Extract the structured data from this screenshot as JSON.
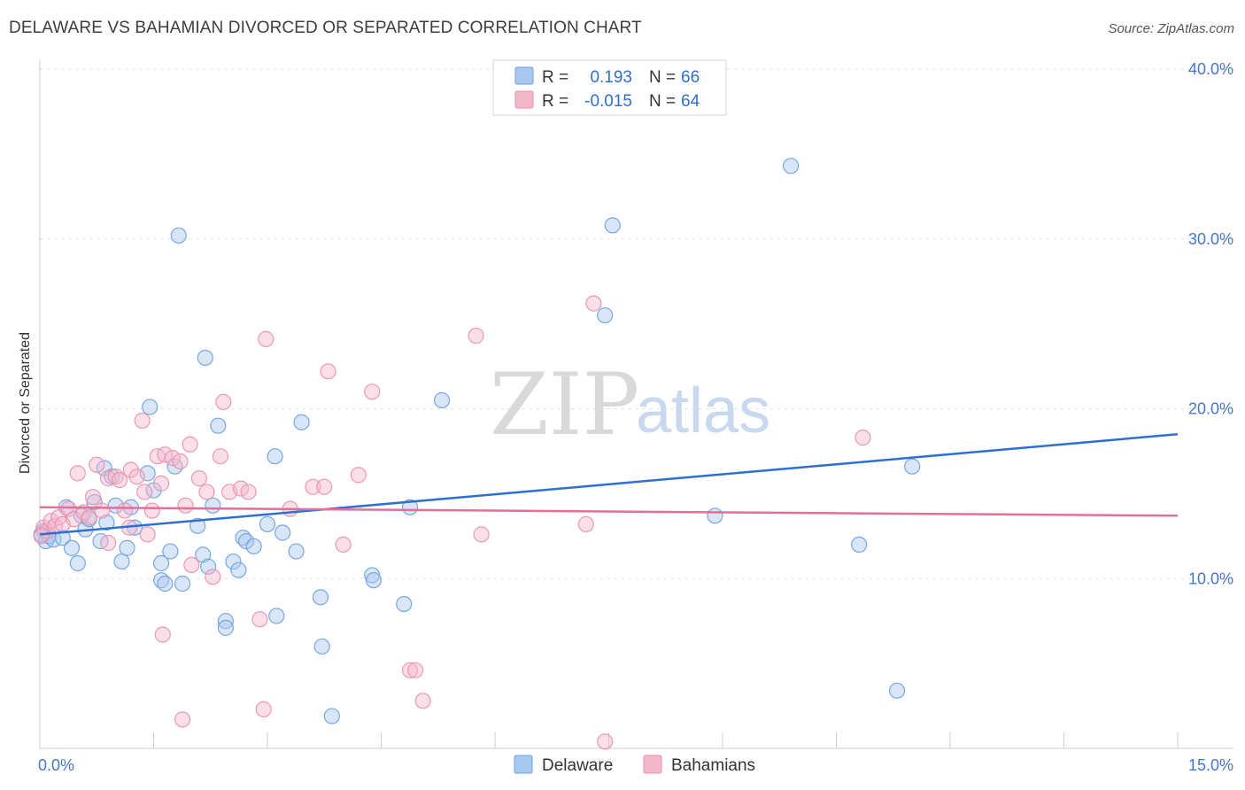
{
  "title": "DELAWARE VS BAHAMIAN DIVORCED OR SEPARATED CORRELATION CHART",
  "source": "Source: ZipAtlas.com",
  "watermark": {
    "zip": "ZIP",
    "atlas": "atlas"
  },
  "legend": {
    "rows": [
      {
        "r_label": "R =",
        "r_value": "0.193",
        "n_label": "N =",
        "n_value": "66",
        "color": "#a9c8f0"
      },
      {
        "r_label": "R =",
        "r_value": "-0.015",
        "n_label": "N =",
        "n_value": "64",
        "color": "#f5b8cb"
      }
    ]
  },
  "chart_data": {
    "type": "scatter",
    "title": "DELAWARE VS BAHAMIAN DIVORCED OR SEPARATED CORRELATION CHART",
    "xlabel": "",
    "ylabel": "Divorced or Separated",
    "xlim": [
      0,
      15
    ],
    "ylim": [
      0,
      40
    ],
    "x_tick_labels": [
      "0.0%",
      "15.0%"
    ],
    "y_ticks": [
      10,
      20,
      30,
      40
    ],
    "y_tick_labels": [
      "10.0%",
      "20.0%",
      "30.0%",
      "40.0%"
    ],
    "grid": true,
    "legend_position": "top-center",
    "series": [
      {
        "name": "Delaware",
        "color": "#6a9fe0",
        "fill": "#a9c8f0",
        "trend": {
          "x": [
            0,
            15
          ],
          "y": [
            12.6,
            18.5
          ],
          "color": "#2f6fd0"
        },
        "points": [
          {
            "x": 0.05,
            "y": 12.8
          },
          {
            "x": 0.08,
            "y": 12.2
          },
          {
            "x": 0.12,
            "y": 12.5
          },
          {
            "x": 0.18,
            "y": 12.3
          },
          {
            "x": 0.3,
            "y": 12.4
          },
          {
            "x": 0.35,
            "y": 14.2
          },
          {
            "x": 0.42,
            "y": 11.8
          },
          {
            "x": 0.5,
            "y": 10.9
          },
          {
            "x": 0.55,
            "y": 13.7
          },
          {
            "x": 0.6,
            "y": 12.9
          },
          {
            "x": 0.65,
            "y": 13.5
          },
          {
            "x": 0.72,
            "y": 14.5
          },
          {
            "x": 0.8,
            "y": 12.2
          },
          {
            "x": 0.85,
            "y": 16.5
          },
          {
            "x": 0.88,
            "y": 13.3
          },
          {
            "x": 0.95,
            "y": 16.0
          },
          {
            "x": 1.0,
            "y": 14.3
          },
          {
            "x": 1.08,
            "y": 11.0
          },
          {
            "x": 1.15,
            "y": 11.8
          },
          {
            "x": 1.2,
            "y": 14.2
          },
          {
            "x": 1.25,
            "y": 13.0
          },
          {
            "x": 1.42,
            "y": 16.2
          },
          {
            "x": 1.45,
            "y": 20.1
          },
          {
            "x": 1.5,
            "y": 15.2
          },
          {
            "x": 1.6,
            "y": 10.9
          },
          {
            "x": 1.6,
            "y": 9.9
          },
          {
            "x": 1.65,
            "y": 9.7
          },
          {
            "x": 1.72,
            "y": 11.6
          },
          {
            "x": 1.78,
            "y": 16.6
          },
          {
            "x": 1.83,
            "y": 30.2
          },
          {
            "x": 1.88,
            "y": 9.7
          },
          {
            "x": 2.08,
            "y": 13.1
          },
          {
            "x": 2.15,
            "y": 11.4
          },
          {
            "x": 2.18,
            "y": 23.0
          },
          {
            "x": 2.22,
            "y": 10.7
          },
          {
            "x": 2.28,
            "y": 14.3
          },
          {
            "x": 2.35,
            "y": 19.0
          },
          {
            "x": 2.45,
            "y": 7.5
          },
          {
            "x": 2.45,
            "y": 7.1
          },
          {
            "x": 2.55,
            "y": 11.0
          },
          {
            "x": 2.62,
            "y": 10.5
          },
          {
            "x": 2.68,
            "y": 12.4
          },
          {
            "x": 2.72,
            "y": 12.2
          },
          {
            "x": 2.82,
            "y": 11.9
          },
          {
            "x": 3.0,
            "y": 13.2
          },
          {
            "x": 3.1,
            "y": 17.2
          },
          {
            "x": 3.12,
            "y": 7.8
          },
          {
            "x": 3.2,
            "y": 12.7
          },
          {
            "x": 3.38,
            "y": 11.6
          },
          {
            "x": 3.45,
            "y": 19.2
          },
          {
            "x": 3.7,
            "y": 8.9
          },
          {
            "x": 3.72,
            "y": 6.0
          },
          {
            "x": 3.85,
            "y": 1.9
          },
          {
            "x": 4.38,
            "y": 10.2
          },
          {
            "x": 4.4,
            "y": 9.9
          },
          {
            "x": 4.8,
            "y": 8.5
          },
          {
            "x": 4.88,
            "y": 14.2
          },
          {
            "x": 5.3,
            "y": 20.5
          },
          {
            "x": 7.45,
            "y": 25.5
          },
          {
            "x": 7.55,
            "y": 30.8
          },
          {
            "x": 8.9,
            "y": 13.7
          },
          {
            "x": 9.9,
            "y": 34.3
          },
          {
            "x": 10.8,
            "y": 12.0
          },
          {
            "x": 11.3,
            "y": 3.4
          },
          {
            "x": 11.5,
            "y": 16.6
          },
          {
            "x": 0.02,
            "y": 12.6
          }
        ]
      },
      {
        "name": "Bahamians",
        "color": "#ea8eab",
        "fill": "#f5b8cb",
        "trend": {
          "x": [
            0,
            15
          ],
          "y": [
            14.2,
            13.7
          ],
          "color": "#e0709a"
        },
        "points": [
          {
            "x": 0.05,
            "y": 13.0
          },
          {
            "x": 0.1,
            "y": 12.8
          },
          {
            "x": 0.15,
            "y": 13.4
          },
          {
            "x": 0.2,
            "y": 13.1
          },
          {
            "x": 0.25,
            "y": 13.6
          },
          {
            "x": 0.3,
            "y": 13.2
          },
          {
            "x": 0.38,
            "y": 14.1
          },
          {
            "x": 0.45,
            "y": 13.5
          },
          {
            "x": 0.5,
            "y": 16.2
          },
          {
            "x": 0.58,
            "y": 13.9
          },
          {
            "x": 0.65,
            "y": 13.6
          },
          {
            "x": 0.7,
            "y": 14.8
          },
          {
            "x": 0.75,
            "y": 16.7
          },
          {
            "x": 0.82,
            "y": 14.0
          },
          {
            "x": 0.9,
            "y": 15.9
          },
          {
            "x": 0.9,
            "y": 12.1
          },
          {
            "x": 1.0,
            "y": 16.0
          },
          {
            "x": 1.05,
            "y": 15.8
          },
          {
            "x": 1.12,
            "y": 14.0
          },
          {
            "x": 1.18,
            "y": 13.0
          },
          {
            "x": 1.2,
            "y": 16.4
          },
          {
            "x": 1.28,
            "y": 16.0
          },
          {
            "x": 1.35,
            "y": 19.3
          },
          {
            "x": 1.38,
            "y": 15.1
          },
          {
            "x": 1.42,
            "y": 12.6
          },
          {
            "x": 1.48,
            "y": 14.0
          },
          {
            "x": 1.55,
            "y": 17.2
          },
          {
            "x": 1.6,
            "y": 15.6
          },
          {
            "x": 1.62,
            "y": 6.7
          },
          {
            "x": 1.65,
            "y": 17.3
          },
          {
            "x": 1.75,
            "y": 17.1
          },
          {
            "x": 1.85,
            "y": 16.9
          },
          {
            "x": 1.88,
            "y": 1.7
          },
          {
            "x": 1.92,
            "y": 14.3
          },
          {
            "x": 1.98,
            "y": 17.9
          },
          {
            "x": 2.0,
            "y": 10.8
          },
          {
            "x": 2.1,
            "y": 15.9
          },
          {
            "x": 2.2,
            "y": 15.1
          },
          {
            "x": 2.28,
            "y": 10.1
          },
          {
            "x": 2.38,
            "y": 17.2
          },
          {
            "x": 2.42,
            "y": 20.4
          },
          {
            "x": 2.5,
            "y": 15.1
          },
          {
            "x": 2.65,
            "y": 15.3
          },
          {
            "x": 2.75,
            "y": 15.1
          },
          {
            "x": 2.9,
            "y": 7.6
          },
          {
            "x": 2.95,
            "y": 2.3
          },
          {
            "x": 2.98,
            "y": 24.1
          },
          {
            "x": 3.3,
            "y": 14.1
          },
          {
            "x": 3.6,
            "y": 15.4
          },
          {
            "x": 3.75,
            "y": 15.4
          },
          {
            "x": 3.8,
            "y": 22.2
          },
          {
            "x": 4.0,
            "y": 12.0
          },
          {
            "x": 4.2,
            "y": 16.1
          },
          {
            "x": 4.38,
            "y": 21.0
          },
          {
            "x": 4.88,
            "y": 4.6
          },
          {
            "x": 4.95,
            "y": 4.6
          },
          {
            "x": 5.05,
            "y": 2.8
          },
          {
            "x": 5.75,
            "y": 24.3
          },
          {
            "x": 5.82,
            "y": 12.6
          },
          {
            "x": 7.2,
            "y": 13.2
          },
          {
            "x": 7.3,
            "y": 26.2
          },
          {
            "x": 7.45,
            "y": 0.4
          },
          {
            "x": 10.85,
            "y": 18.3
          },
          {
            "x": 0.02,
            "y": 12.5
          }
        ]
      }
    ]
  }
}
